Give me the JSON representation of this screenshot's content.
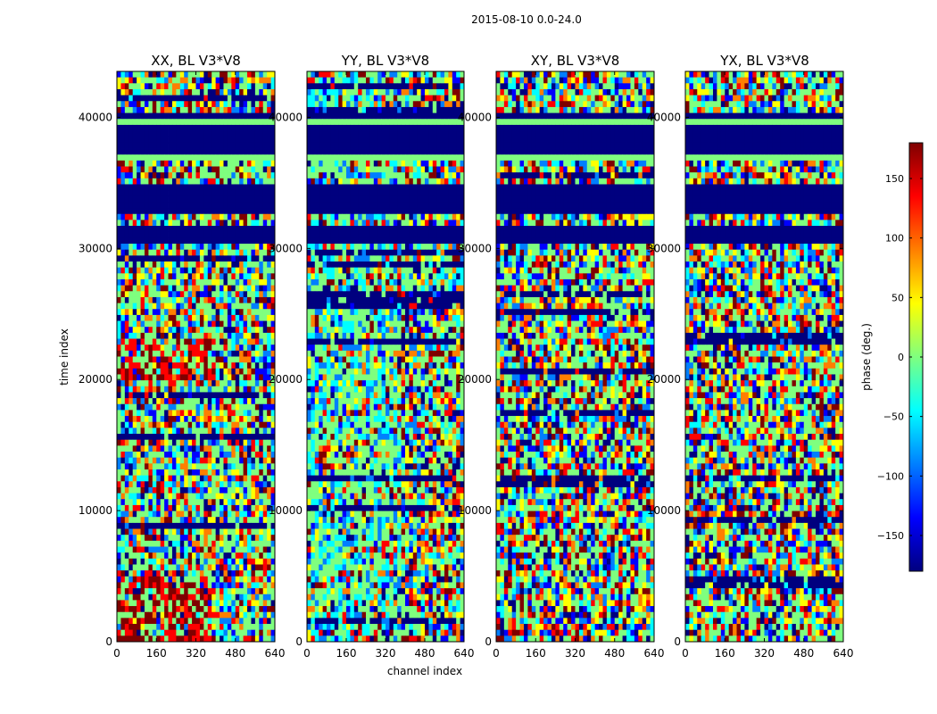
{
  "figure": {
    "suptitle": "2015-08-10 0.0-24.0",
    "xlabel": "channel index",
    "ylabel": "time index"
  },
  "chart_data": {
    "type": "heatmap",
    "colormap": "jet",
    "x_range": [
      0,
      640
    ],
    "y_range": [
      0,
      43500
    ],
    "xticks": [
      0,
      160,
      320,
      480,
      640
    ],
    "yticks": [
      0,
      10000,
      20000,
      30000,
      40000
    ],
    "panels": [
      {
        "id": "xx",
        "title": "XX, BL V3*V8",
        "style": "phase-xx"
      },
      {
        "id": "yy",
        "title": "YY, BL V3*V8",
        "style": "phase-yy"
      },
      {
        "id": "xy",
        "title": "XY, BL V3*V8",
        "style": "noise"
      },
      {
        "id": "yx",
        "title": "YX, BL V3*V8",
        "style": "noise"
      }
    ],
    "flagged_time_ranges": [
      [
        37200,
        39400
      ],
      [
        32700,
        35000
      ],
      [
        30400,
        31600
      ],
      [
        39700,
        40200
      ]
    ],
    "striped_time_ranges": [
      [
        36700,
        37300
      ],
      [
        39200,
        39800
      ]
    ],
    "colorbar": {
      "label": "phase (deg.)",
      "range": [
        -180,
        180
      ],
      "ticks": [
        150,
        100,
        50,
        0,
        -50,
        -100,
        -150
      ],
      "tick_labels": [
        "150",
        "100",
        "50",
        "0",
        "−50",
        "−100",
        "−150"
      ]
    }
  },
  "colors": {
    "flagged": "#00007f",
    "jet": [
      "#00007f",
      "#0000ff",
      "#007fff",
      "#00ffff",
      "#7fff7f",
      "#ffff00",
      "#ff7f00",
      "#ff0000",
      "#7f0000"
    ]
  }
}
